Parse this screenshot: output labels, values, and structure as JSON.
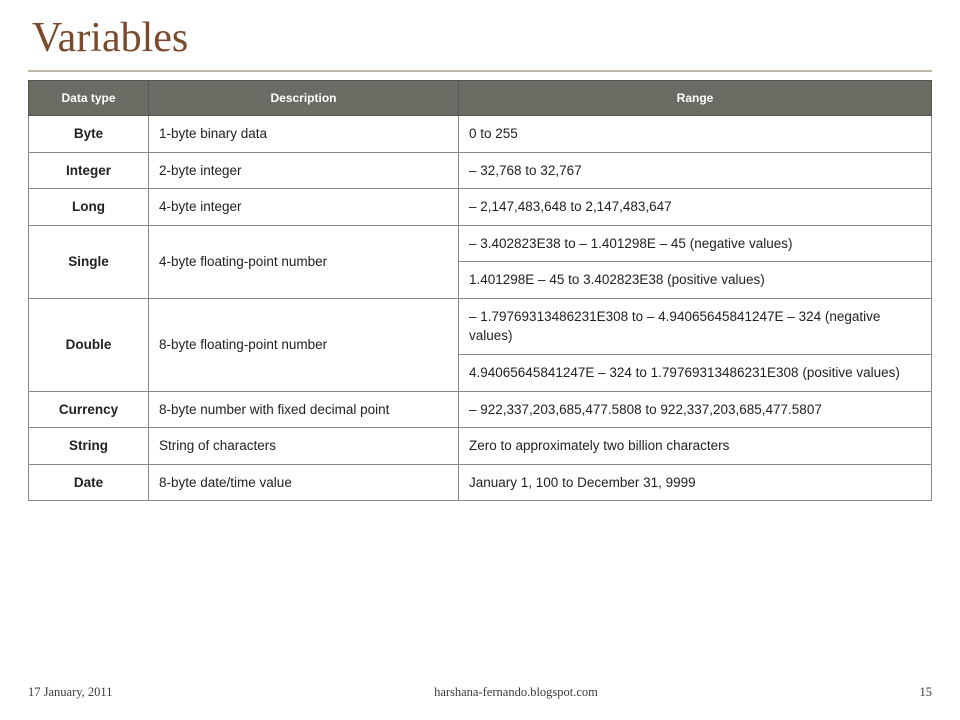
{
  "title": "Variables",
  "table": {
    "header_bg": "#6b6b64",
    "header_fg": "#ffffff",
    "border_color": "#8a8a82",
    "columns": [
      "Data type",
      "Description",
      "Range"
    ],
    "rows": [
      {
        "type": "Byte",
        "desc": "1-byte binary data",
        "ranges": [
          "0 to 255"
        ]
      },
      {
        "type": "Integer",
        "desc": "2-byte integer",
        "ranges": [
          "– 32,768 to 32,767"
        ]
      },
      {
        "type": "Long",
        "desc": "4-byte integer",
        "ranges": [
          "– 2,147,483,648 to 2,147,483,647"
        ]
      },
      {
        "type": "Single",
        "desc": "4-byte floating-point number",
        "ranges": [
          "– 3.402823E38 to – 1.401298E – 45 (negative values)",
          "1.401298E – 45 to 3.402823E38 (positive values)"
        ]
      },
      {
        "type": "Double",
        "desc": "8-byte floating-point number",
        "ranges": [
          "– 1.79769313486231E308 to – 4.94065645841247E – 324 (negative values)",
          "4.94065645841247E – 324 to 1.79769313486231E308 (positive values)"
        ]
      },
      {
        "type": "Currency",
        "desc": "8-byte number with fixed decimal point",
        "ranges": [
          "– 922,337,203,685,477.5808 to 922,337,203,685,477.5807"
        ]
      },
      {
        "type": "String",
        "desc": "String of characters",
        "ranges": [
          "Zero to approximately two billion characters"
        ]
      },
      {
        "type": "Date",
        "desc": "8-byte date/time value",
        "ranges": [
          "January 1, 100 to December 31, 9999"
        ]
      }
    ]
  },
  "footer": {
    "date": "17 January, 2011",
    "site": "harshana-fernando.blogspot.com",
    "page": "15"
  }
}
